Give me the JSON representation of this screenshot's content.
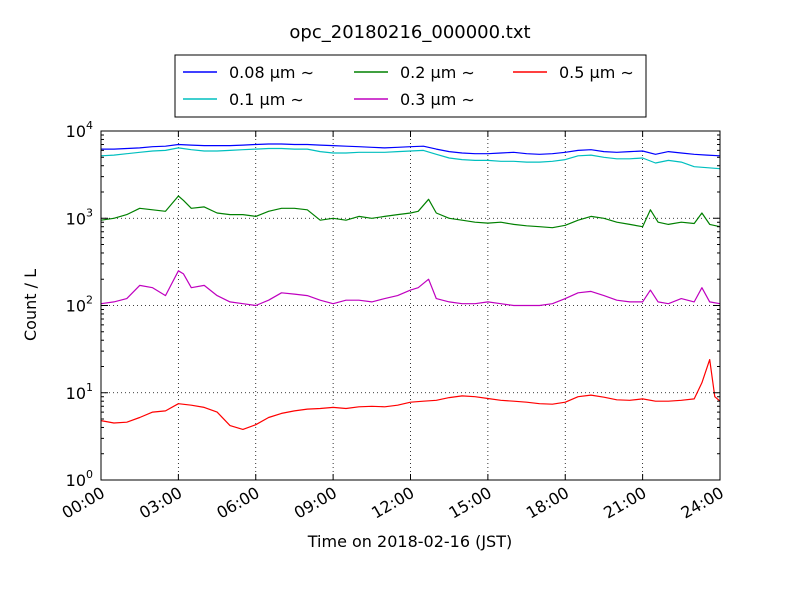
{
  "chart_data": {
    "type": "line",
    "title": "opc_20180216_000000.txt",
    "xlabel": "Time on 2018-02-16 (JST)",
    "ylabel": "Count / L",
    "yscale": "log",
    "ylim": [
      1,
      10000
    ],
    "xlim": [
      0,
      24
    ],
    "x_ticks": [
      "00:00",
      "03:00",
      "06:00",
      "09:00",
      "12:00",
      "15:00",
      "18:00",
      "21:00",
      "24:00"
    ],
    "y_ticks": [
      {
        "base": "10",
        "exp": "0"
      },
      {
        "base": "10",
        "exp": "1"
      },
      {
        "base": "10",
        "exp": "2"
      },
      {
        "base": "10",
        "exp": "3"
      },
      {
        "base": "10",
        "exp": "4"
      }
    ],
    "grid": true,
    "legend_position": "top",
    "x_unit": "hour",
    "series": [
      {
        "name": "0.08 μm ∼",
        "color": "#0000ff",
        "x": [
          0,
          0.5,
          1,
          1.5,
          2,
          2.5,
          3,
          3.5,
          4,
          4.5,
          5,
          5.5,
          6,
          6.5,
          7,
          7.5,
          8,
          8.5,
          9,
          9.5,
          10,
          10.5,
          11,
          11.5,
          12,
          12.5,
          13,
          13.5,
          14,
          14.5,
          15,
          15.5,
          16,
          16.5,
          17,
          17.5,
          18,
          18.5,
          19,
          19.5,
          20,
          20.5,
          21,
          21.5,
          22,
          22.5,
          23,
          23.5,
          24
        ],
        "y": [
          6200,
          6200,
          6300,
          6400,
          6600,
          6700,
          7000,
          6900,
          6800,
          6800,
          6800,
          6900,
          7000,
          7100,
          7100,
          7000,
          7000,
          6900,
          6800,
          6700,
          6600,
          6500,
          6400,
          6500,
          6600,
          6700,
          6200,
          5800,
          5600,
          5500,
          5500,
          5600,
          5700,
          5500,
          5400,
          5500,
          5700,
          6000,
          6100,
          5800,
          5700,
          5800,
          5900,
          5400,
          5800,
          5600,
          5400,
          5300,
          5200
        ]
      },
      {
        "name": "0.1 μm ∼",
        "color": "#00bfbf",
        "x": [
          0,
          0.5,
          1,
          1.5,
          2,
          2.5,
          3,
          3.5,
          4,
          4.5,
          5,
          5.5,
          6,
          6.5,
          7,
          7.5,
          8,
          8.5,
          9,
          9.5,
          10,
          10.5,
          11,
          11.5,
          12,
          12.5,
          13,
          13.5,
          14,
          14.5,
          15,
          15.5,
          16,
          16.5,
          17,
          17.5,
          18,
          18.5,
          19,
          19.5,
          20,
          20.5,
          21,
          21.5,
          22,
          22.5,
          23,
          23.5,
          24
        ],
        "y": [
          5200,
          5300,
          5500,
          5700,
          5900,
          6000,
          6400,
          6100,
          5900,
          5900,
          6000,
          6100,
          6200,
          6300,
          6300,
          6200,
          6200,
          5800,
          5600,
          5600,
          5700,
          5700,
          5700,
          5800,
          5900,
          6000,
          5400,
          4900,
          4700,
          4600,
          4600,
          4500,
          4500,
          4400,
          4400,
          4500,
          4700,
          5200,
          5300,
          5000,
          4800,
          4800,
          4900,
          4300,
          4600,
          4400,
          3900,
          3800,
          3700
        ]
      },
      {
        "name": "0.2 μm ∼",
        "color": "#008000",
        "x": [
          0,
          0.5,
          1,
          1.5,
          2,
          2.5,
          3,
          3.2,
          3.5,
          4,
          4.5,
          5,
          5.5,
          6,
          6.5,
          7,
          7.5,
          8,
          8.5,
          9,
          9.5,
          10,
          10.5,
          11,
          11.5,
          12,
          12.3,
          12.7,
          13,
          13.5,
          14,
          14.5,
          15,
          15.5,
          16,
          16.5,
          17,
          17.5,
          18,
          18.5,
          19,
          19.5,
          20,
          20.5,
          21,
          21.3,
          21.6,
          22,
          22.5,
          23,
          23.3,
          23.6,
          24
        ],
        "y": [
          950,
          1000,
          1100,
          1300,
          1250,
          1200,
          1800,
          1600,
          1300,
          1350,
          1150,
          1100,
          1100,
          1050,
          1200,
          1300,
          1300,
          1250,
          950,
          1000,
          950,
          1050,
          1000,
          1050,
          1100,
          1150,
          1200,
          1650,
          1150,
          1000,
          950,
          900,
          880,
          900,
          850,
          820,
          800,
          780,
          830,
          950,
          1050,
          1000,
          900,
          850,
          800,
          1250,
          900,
          850,
          900,
          870,
          1150,
          850,
          800
        ]
      },
      {
        "name": "0.3 μm ∼",
        "color": "#bf00bf",
        "x": [
          0,
          0.5,
          1,
          1.5,
          2,
          2.5,
          3,
          3.2,
          3.5,
          4,
          4.5,
          5,
          5.5,
          6,
          6.5,
          7,
          7.5,
          8,
          8.5,
          9,
          9.5,
          10,
          10.5,
          11,
          11.5,
          12,
          12.3,
          12.7,
          13,
          13.5,
          14,
          14.5,
          15,
          15.5,
          16,
          16.5,
          17,
          17.5,
          18,
          18.5,
          19,
          19.5,
          20,
          20.5,
          21,
          21.3,
          21.6,
          22,
          22.5,
          23,
          23.3,
          23.6,
          24
        ],
        "y": [
          105,
          110,
          120,
          170,
          160,
          130,
          250,
          230,
          160,
          170,
          130,
          110,
          105,
          100,
          115,
          140,
          135,
          130,
          115,
          105,
          115,
          115,
          110,
          120,
          130,
          150,
          160,
          200,
          120,
          110,
          105,
          105,
          110,
          105,
          100,
          100,
          100,
          105,
          120,
          140,
          145,
          130,
          115,
          110,
          110,
          150,
          110,
          105,
          120,
          110,
          160,
          110,
          105
        ]
      },
      {
        "name": "0.5 μm ∼",
        "color": "#ff0000",
        "x": [
          0,
          0.5,
          1,
          1.5,
          2,
          2.5,
          3,
          3.5,
          4,
          4.5,
          5,
          5.5,
          6,
          6.5,
          7,
          7.5,
          8,
          8.5,
          9,
          9.5,
          10,
          10.5,
          11,
          11.5,
          12,
          12.5,
          13,
          13.5,
          14,
          14.5,
          15,
          15.5,
          16,
          16.5,
          17,
          17.5,
          18,
          18.5,
          19,
          19.5,
          20,
          20.5,
          21,
          21.5,
          22,
          22.5,
          23,
          23.3,
          23.6,
          23.8,
          24
        ],
        "y": [
          4.8,
          4.5,
          4.6,
          5.2,
          6.0,
          6.2,
          7.5,
          7.2,
          6.8,
          6.0,
          4.2,
          3.8,
          4.3,
          5.2,
          5.8,
          6.2,
          6.5,
          6.6,
          6.8,
          6.6,
          6.9,
          7.0,
          6.9,
          7.2,
          7.8,
          8.0,
          8.2,
          8.8,
          9.2,
          9.0,
          8.6,
          8.2,
          8.0,
          7.8,
          7.5,
          7.4,
          7.8,
          9.0,
          9.4,
          8.9,
          8.3,
          8.2,
          8.5,
          8.0,
          8.0,
          8.2,
          8.5,
          13,
          24,
          9,
          8.0
        ]
      }
    ]
  }
}
